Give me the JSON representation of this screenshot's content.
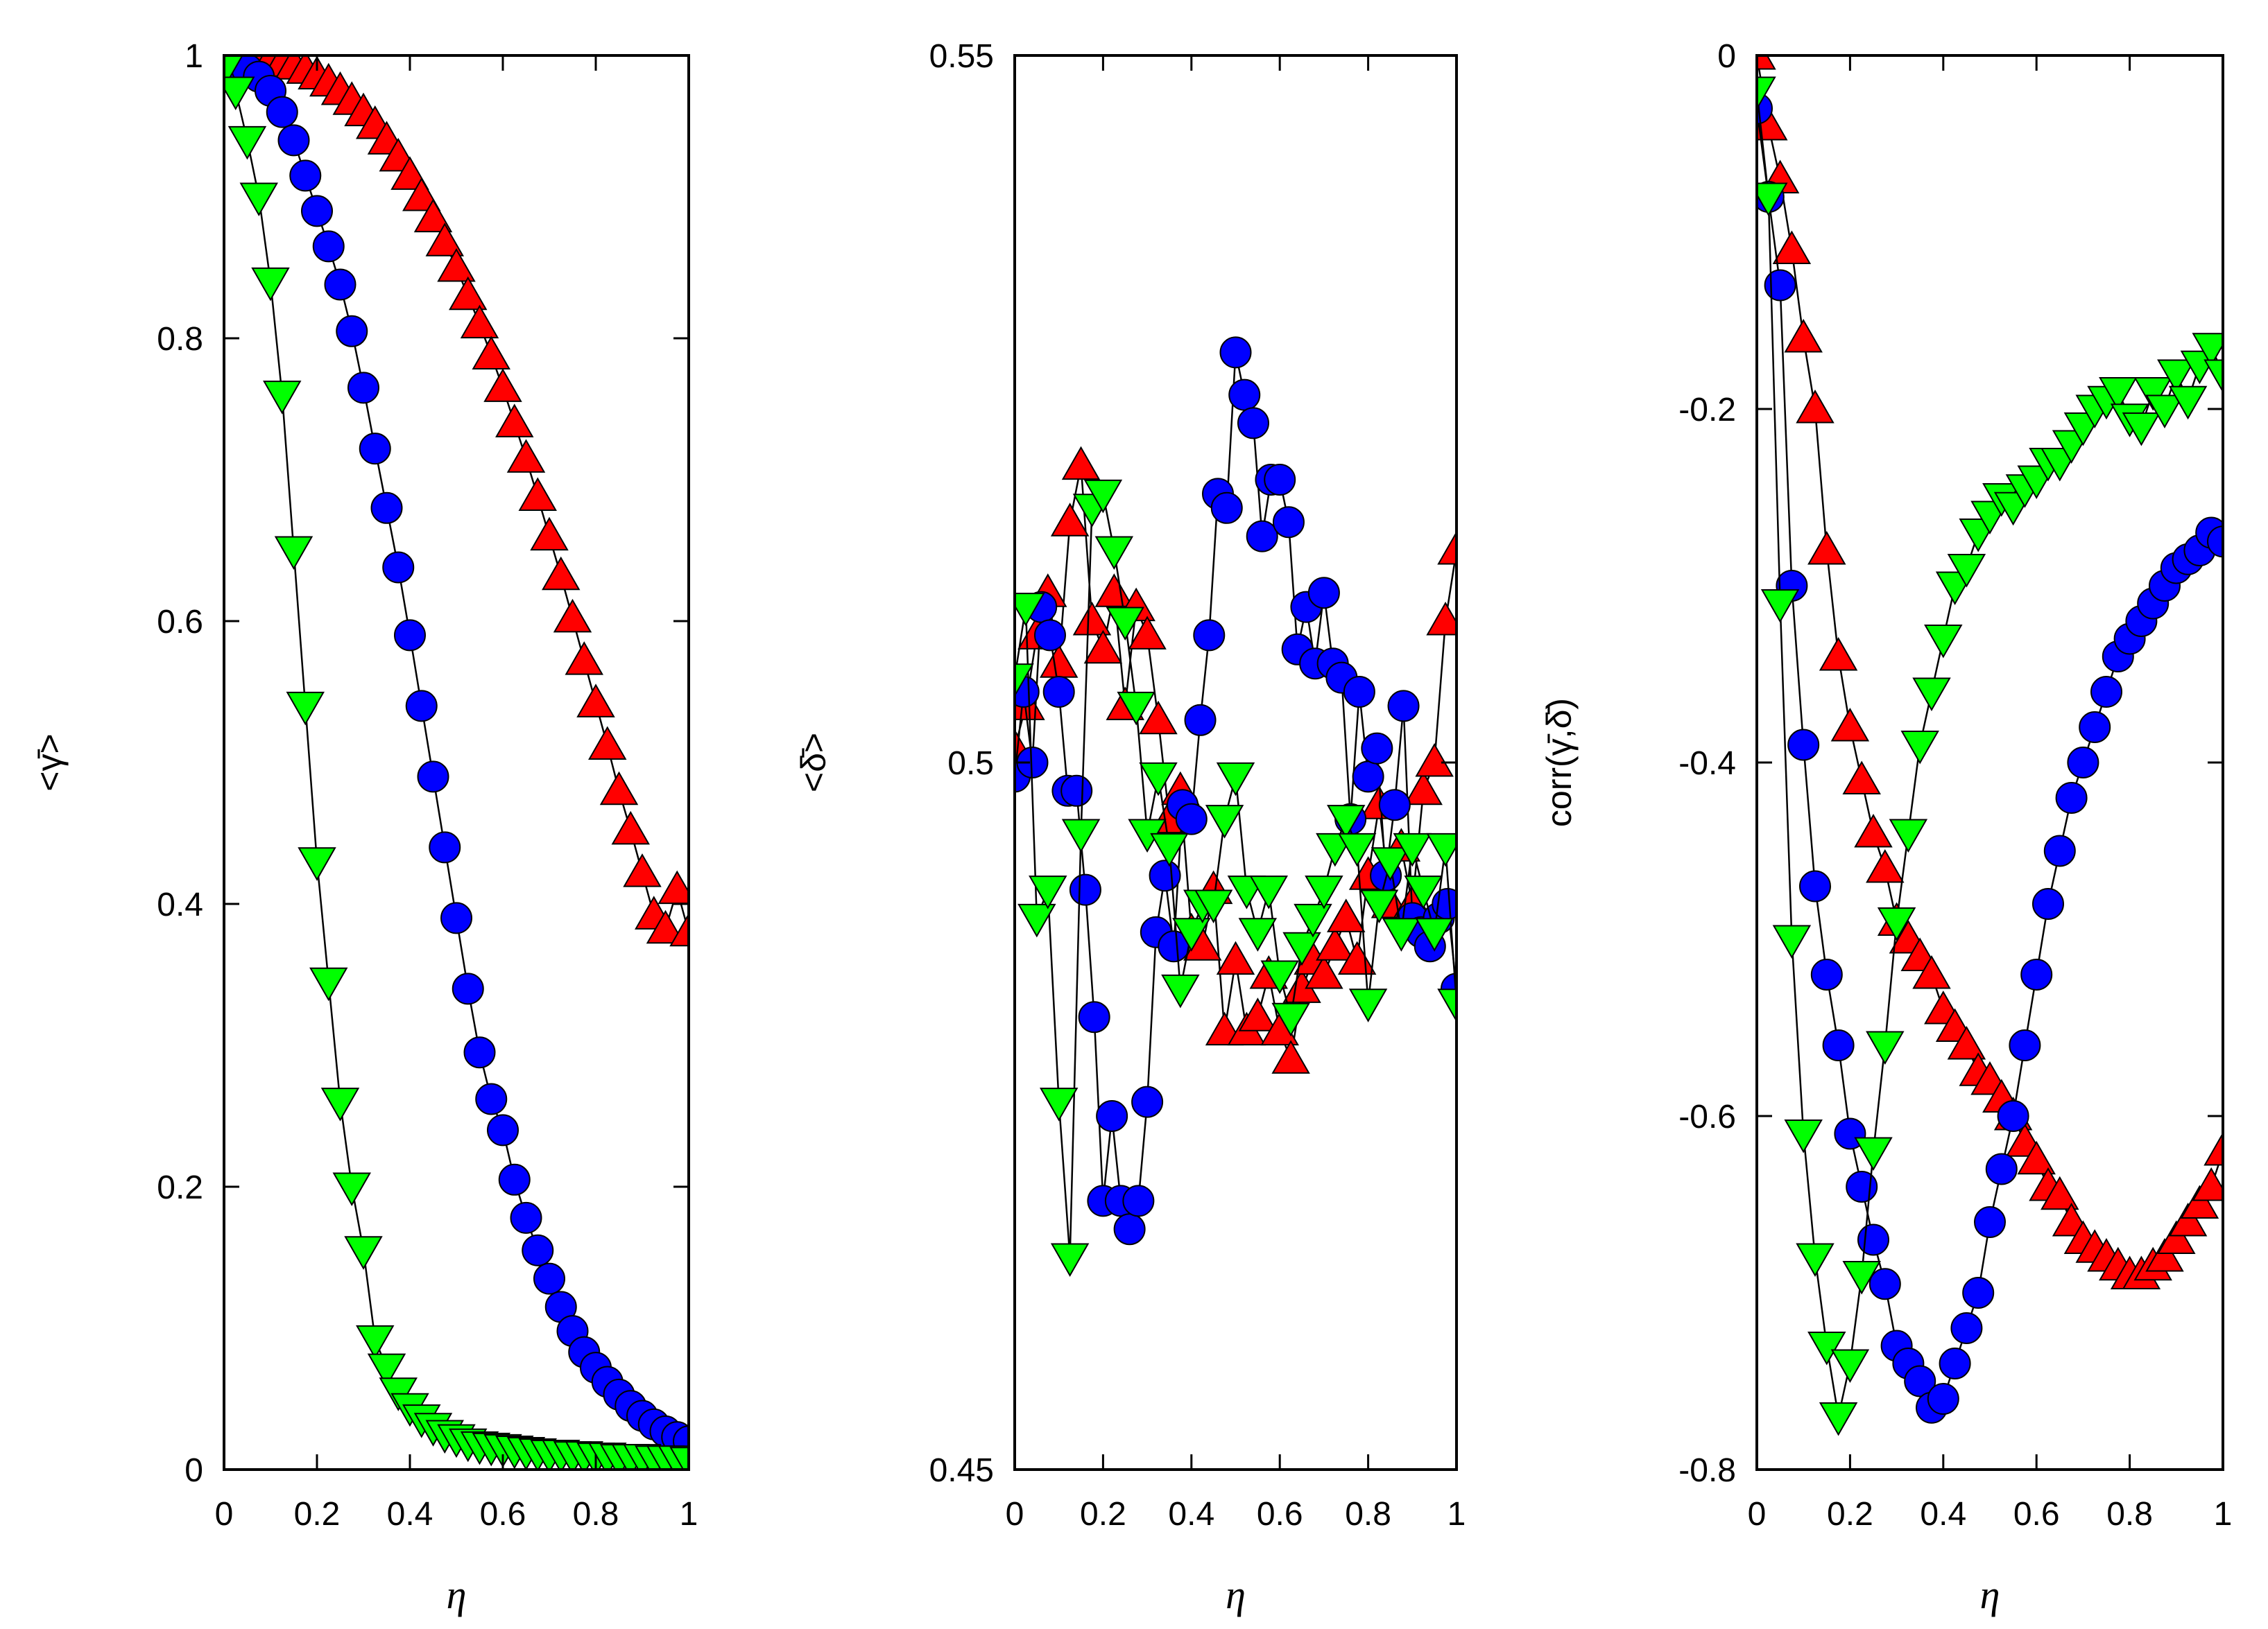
{
  "chart_data": [
    {
      "type": "scatter",
      "xlabel": "η",
      "ylabel": "<γ̄>",
      "xlim": [
        0,
        1
      ],
      "ylim": [
        0,
        1
      ],
      "xticks": [
        "0",
        "0.2",
        "0.4",
        "0.6",
        "0.8",
        "1"
      ],
      "yticks": [
        "0",
        "0.2",
        "0.4",
        "0.6",
        "0.8",
        "1"
      ],
      "series": [
        {
          "name": "red triangles up",
          "color": "#ff0000",
          "marker": "triangle-up",
          "x": [
            0.0,
            0.025,
            0.05,
            0.075,
            0.1,
            0.125,
            0.15,
            0.175,
            0.2,
            0.225,
            0.25,
            0.275,
            0.3,
            0.325,
            0.35,
            0.375,
            0.4,
            0.425,
            0.45,
            0.475,
            0.5,
            0.525,
            0.55,
            0.575,
            0.6,
            0.625,
            0.65,
            0.675,
            0.7,
            0.725,
            0.75,
            0.775,
            0.8,
            0.825,
            0.85,
            0.875,
            0.9,
            0.925,
            0.95,
            0.975,
            1.0
          ],
          "y": [
            1.0,
            1.0,
            0.999,
            0.998,
            0.997,
            0.995,
            0.993,
            0.99,
            0.986,
            0.981,
            0.975,
            0.968,
            0.96,
            0.951,
            0.94,
            0.928,
            0.915,
            0.9,
            0.885,
            0.868,
            0.85,
            0.83,
            0.81,
            0.788,
            0.765,
            0.74,
            0.715,
            0.688,
            0.66,
            0.632,
            0.602,
            0.572,
            0.542,
            0.512,
            0.48,
            0.452,
            0.422,
            0.392,
            0.382,
            0.41,
            0.38
          ]
        },
        {
          "name": "blue circles",
          "color": "#0000ff",
          "marker": "circle",
          "x": [
            0.0,
            0.025,
            0.05,
            0.075,
            0.1,
            0.125,
            0.15,
            0.175,
            0.2,
            0.225,
            0.25,
            0.275,
            0.3,
            0.325,
            0.35,
            0.375,
            0.4,
            0.425,
            0.45,
            0.475,
            0.5,
            0.525,
            0.55,
            0.575,
            0.6,
            0.625,
            0.65,
            0.675,
            0.7,
            0.725,
            0.75,
            0.775,
            0.8,
            0.825,
            0.85,
            0.875,
            0.9,
            0.925,
            0.95,
            0.975,
            1.0
          ],
          "y": [
            0.995,
            0.993,
            0.99,
            0.985,
            0.975,
            0.96,
            0.94,
            0.915,
            0.89,
            0.865,
            0.838,
            0.805,
            0.765,
            0.722,
            0.68,
            0.638,
            0.59,
            0.54,
            0.49,
            0.44,
            0.39,
            0.34,
            0.295,
            0.262,
            0.24,
            0.205,
            0.178,
            0.155,
            0.135,
            0.115,
            0.098,
            0.083,
            0.072,
            0.062,
            0.053,
            0.045,
            0.038,
            0.032,
            0.027,
            0.023,
            0.02
          ]
        },
        {
          "name": "green triangles down",
          "color": "#00ff00",
          "marker": "triangle-down",
          "x": [
            0.0,
            0.025,
            0.05,
            0.075,
            0.1,
            0.125,
            0.15,
            0.175,
            0.2,
            0.225,
            0.25,
            0.275,
            0.3,
            0.325,
            0.35,
            0.375,
            0.4,
            0.425,
            0.45,
            0.475,
            0.5,
            0.525,
            0.55,
            0.575,
            0.6,
            0.625,
            0.65,
            0.675,
            0.7,
            0.725,
            0.75,
            0.775,
            0.8,
            0.825,
            0.85,
            0.875,
            0.9,
            0.925,
            0.95,
            0.975,
            1.0
          ],
          "y": [
            0.99,
            0.975,
            0.94,
            0.9,
            0.84,
            0.76,
            0.65,
            0.54,
            0.43,
            0.345,
            0.26,
            0.2,
            0.155,
            0.092,
            0.072,
            0.055,
            0.044,
            0.036,
            0.03,
            0.025,
            0.022,
            0.019,
            0.017,
            0.016,
            0.015,
            0.014,
            0.013,
            0.012,
            0.011,
            0.011,
            0.01,
            0.01,
            0.009,
            0.009,
            0.008,
            0.008,
            0.008,
            0.007,
            0.007,
            0.007,
            0.006
          ]
        }
      ]
    },
    {
      "type": "scatter",
      "xlabel": "η",
      "ylabel": "<δ̄>",
      "xlim": [
        0,
        1
      ],
      "ylim": [
        0.45,
        0.55
      ],
      "xticks": [
        "0",
        "0.2",
        "0.4",
        "0.6",
        "0.8",
        "1"
      ],
      "yticks": [
        "0.45",
        "0.5",
        "0.55"
      ],
      "series": [
        {
          "name": "red triangles up",
          "color": "#ff0000",
          "marker": "triangle-up",
          "x": [
            0.0,
            0.025,
            0.05,
            0.075,
            0.1,
            0.125,
            0.15,
            0.175,
            0.2,
            0.225,
            0.25,
            0.275,
            0.3,
            0.325,
            0.35,
            0.375,
            0.4,
            0.425,
            0.45,
            0.475,
            0.5,
            0.525,
            0.55,
            0.575,
            0.6,
            0.625,
            0.65,
            0.675,
            0.7,
            0.725,
            0.75,
            0.775,
            0.8,
            0.825,
            0.85,
            0.875,
            0.9,
            0.925,
            0.95,
            0.975,
            1.0
          ],
          "y": [
            0.501,
            0.504,
            0.509,
            0.512,
            0.507,
            0.517,
            0.521,
            0.51,
            0.508,
            0.512,
            0.504,
            0.511,
            0.509,
            0.503,
            0.496,
            0.498,
            0.488,
            0.487,
            0.491,
            0.481,
            0.486,
            0.481,
            0.482,
            0.485,
            0.481,
            0.479,
            0.484,
            0.486,
            0.485,
            0.487,
            0.489,
            0.486,
            0.492,
            0.497,
            0.49,
            0.494,
            0.49,
            0.498,
            0.5,
            0.51,
            0.515
          ]
        },
        {
          "name": "blue circles",
          "color": "#0000ff",
          "marker": "circle",
          "x": [
            0.0,
            0.02,
            0.04,
            0.06,
            0.08,
            0.1,
            0.12,
            0.14,
            0.16,
            0.18,
            0.2,
            0.22,
            0.24,
            0.26,
            0.28,
            0.3,
            0.32,
            0.34,
            0.36,
            0.38,
            0.4,
            0.42,
            0.44,
            0.46,
            0.48,
            0.5,
            0.52,
            0.54,
            0.56,
            0.58,
            0.6,
            0.62,
            0.64,
            0.66,
            0.68,
            0.7,
            0.72,
            0.74,
            0.76,
            0.78,
            0.8,
            0.82,
            0.84,
            0.86,
            0.88,
            0.9,
            0.92,
            0.94,
            0.96,
            0.98,
            1.0
          ],
          "y": [
            0.499,
            0.505,
            0.5,
            0.511,
            0.509,
            0.505,
            0.498,
            0.498,
            0.491,
            0.482,
            0.469,
            0.475,
            0.469,
            0.467,
            0.469,
            0.476,
            0.488,
            0.492,
            0.487,
            0.497,
            0.496,
            0.503,
            0.509,
            0.519,
            0.518,
            0.529,
            0.526,
            0.524,
            0.516,
            0.52,
            0.52,
            0.517,
            0.508,
            0.511,
            0.507,
            0.512,
            0.507,
            0.506,
            0.496,
            0.505,
            0.499,
            0.501,
            0.492,
            0.497,
            0.504,
            0.489,
            0.488,
            0.487,
            0.489,
            0.49,
            0.484
          ]
        },
        {
          "name": "green triangles down",
          "color": "#00ff00",
          "marker": "triangle-down",
          "x": [
            0.0,
            0.025,
            0.05,
            0.075,
            0.1,
            0.125,
            0.15,
            0.175,
            0.2,
            0.225,
            0.25,
            0.275,
            0.3,
            0.325,
            0.35,
            0.375,
            0.4,
            0.425,
            0.45,
            0.475,
            0.5,
            0.525,
            0.55,
            0.575,
            0.6,
            0.625,
            0.65,
            0.675,
            0.7,
            0.725,
            0.75,
            0.775,
            0.8,
            0.825,
            0.85,
            0.875,
            0.9,
            0.925,
            0.95,
            0.975,
            1.0
          ],
          "y": [
            0.506,
            0.511,
            0.489,
            0.491,
            0.476,
            0.465,
            0.495,
            0.518,
            0.519,
            0.515,
            0.51,
            0.504,
            0.495,
            0.499,
            0.494,
            0.484,
            0.488,
            0.49,
            0.49,
            0.496,
            0.499,
            0.491,
            0.488,
            0.491,
            0.485,
            0.482,
            0.487,
            0.489,
            0.491,
            0.494,
            0.496,
            0.494,
            0.483,
            0.49,
            0.493,
            0.488,
            0.494,
            0.491,
            0.488,
            0.494,
            0.483
          ]
        }
      ]
    },
    {
      "type": "scatter",
      "xlabel": "η",
      "ylabel": "corr(γ̄,δ̄)",
      "xlim": [
        0,
        1
      ],
      "ylim": [
        -0.8,
        0
      ],
      "xticks": [
        "0",
        "0.2",
        "0.4",
        "0.6",
        "0.8",
        "1"
      ],
      "yticks": [
        "-0.8",
        "-0.6",
        "-0.4",
        "-0.2",
        "0"
      ],
      "series": [
        {
          "name": "red triangles up",
          "color": "#ff0000",
          "marker": "triangle-up",
          "x": [
            0.0,
            0.025,
            0.05,
            0.075,
            0.1,
            0.125,
            0.15,
            0.175,
            0.2,
            0.225,
            0.25,
            0.275,
            0.3,
            0.325,
            0.35,
            0.375,
            0.4,
            0.425,
            0.45,
            0.475,
            0.5,
            0.525,
            0.55,
            0.575,
            0.6,
            0.625,
            0.65,
            0.675,
            0.7,
            0.725,
            0.75,
            0.775,
            0.8,
            0.825,
            0.85,
            0.875,
            0.9,
            0.925,
            0.95,
            0.975,
            1.0
          ],
          "y": [
            0.0,
            -0.04,
            -0.07,
            -0.11,
            -0.16,
            -0.2,
            -0.28,
            -0.34,
            -0.38,
            -0.41,
            -0.44,
            -0.46,
            -0.49,
            -0.5,
            -0.51,
            -0.52,
            -0.54,
            -0.55,
            -0.56,
            -0.575,
            -0.58,
            -0.59,
            -0.6,
            -0.615,
            -0.625,
            -0.64,
            -0.645,
            -0.66,
            -0.67,
            -0.675,
            -0.68,
            -0.685,
            -0.69,
            -0.69,
            -0.685,
            -0.68,
            -0.67,
            -0.66,
            -0.65,
            -0.64,
            -0.62
          ]
        },
        {
          "name": "blue circles",
          "color": "#0000ff",
          "marker": "circle",
          "x": [
            0.0,
            0.025,
            0.05,
            0.075,
            0.1,
            0.125,
            0.15,
            0.175,
            0.2,
            0.225,
            0.25,
            0.275,
            0.3,
            0.325,
            0.35,
            0.375,
            0.4,
            0.425,
            0.45,
            0.475,
            0.5,
            0.525,
            0.55,
            0.575,
            0.6,
            0.625,
            0.65,
            0.675,
            0.7,
            0.725,
            0.75,
            0.775,
            0.8,
            0.825,
            0.85,
            0.875,
            0.9,
            0.925,
            0.95,
            0.975,
            1.0
          ],
          "y": [
            -0.03,
            -0.08,
            -0.13,
            -0.3,
            -0.39,
            -0.47,
            -0.52,
            -0.56,
            -0.61,
            -0.64,
            -0.67,
            -0.695,
            -0.73,
            -0.74,
            -0.75,
            -0.765,
            -0.76,
            -0.74,
            -0.72,
            -0.7,
            -0.66,
            -0.63,
            -0.6,
            -0.56,
            -0.52,
            -0.48,
            -0.45,
            -0.42,
            -0.4,
            -0.38,
            -0.36,
            -0.34,
            -0.33,
            -0.32,
            -0.31,
            -0.3,
            -0.29,
            -0.285,
            -0.28,
            -0.27,
            -0.275
          ]
        },
        {
          "name": "green triangles down",
          "color": "#00ff00",
          "marker": "triangle-down",
          "x": [
            0.0,
            0.025,
            0.05,
            0.075,
            0.1,
            0.125,
            0.15,
            0.175,
            0.2,
            0.225,
            0.25,
            0.275,
            0.3,
            0.325,
            0.35,
            0.375,
            0.4,
            0.425,
            0.45,
            0.475,
            0.5,
            0.525,
            0.55,
            0.575,
            0.6,
            0.625,
            0.65,
            0.675,
            0.7,
            0.725,
            0.75,
            0.775,
            0.8,
            0.825,
            0.85,
            0.875,
            0.9,
            0.925,
            0.95,
            0.975,
            1.0
          ],
          "y": [
            -0.02,
            -0.08,
            -0.31,
            -0.5,
            -0.61,
            -0.68,
            -0.73,
            -0.77,
            -0.74,
            -0.69,
            -0.62,
            -0.56,
            -0.49,
            -0.44,
            -0.39,
            -0.36,
            -0.33,
            -0.3,
            -0.29,
            -0.27,
            -0.26,
            -0.25,
            -0.255,
            -0.245,
            -0.24,
            -0.23,
            -0.23,
            -0.22,
            -0.21,
            -0.2,
            -0.195,
            -0.19,
            -0.205,
            -0.21,
            -0.19,
            -0.2,
            -0.18,
            -0.195,
            -0.175,
            -0.165,
            -0.18
          ]
        }
      ]
    }
  ]
}
